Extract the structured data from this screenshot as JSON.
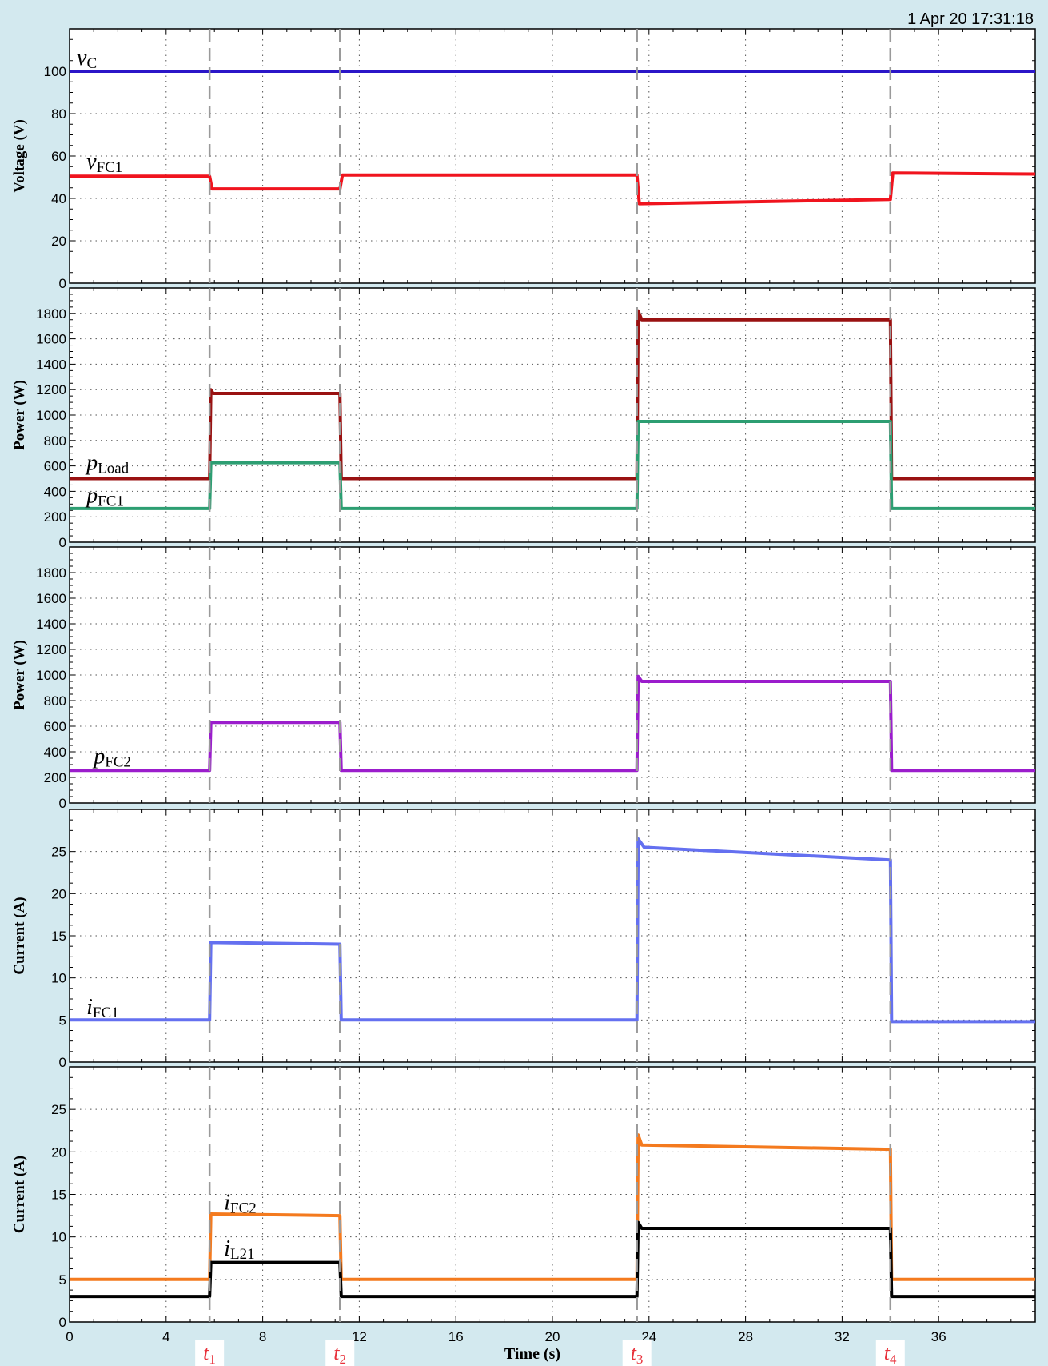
{
  "timestamp": "1 Apr 20  17:31:18",
  "xlabel": "Time (s)",
  "colors": {
    "vC": "#2b16c8",
    "vFC1": "#f0141e",
    "pLoad": "#991111",
    "pFC1": "#2d9e72",
    "pFC2": "#9b1dcc",
    "iFC1": "#6470f0",
    "iFC2": "#f47a1e",
    "iL21": "#000000",
    "marker": "#9a9a9a",
    "marker_box": "#ffffff"
  },
  "markers": [
    {
      "x": 5.8,
      "label": "t",
      "sub": "1"
    },
    {
      "x": 11.2,
      "label": "t",
      "sub": "2"
    },
    {
      "x": 23.5,
      "label": "t",
      "sub": "3"
    },
    {
      "x": 34.0,
      "label": "t",
      "sub": "4"
    }
  ],
  "chart_data": [
    {
      "type": "line",
      "ylabel": "Voltage (V)",
      "xlim": [
        0,
        40
      ],
      "ylim": [
        0,
        120
      ],
      "yticks": [
        0,
        20,
        40,
        60,
        80,
        100
      ],
      "xticks": [
        0,
        4,
        8,
        12,
        16,
        20,
        24,
        28,
        32,
        36
      ],
      "show_xtick_labels": false,
      "grid": true,
      "series": [
        {
          "name": "v",
          "sub": "C",
          "color_key": "vC",
          "x": [
            0,
            5.8,
            5.85,
            11.2,
            11.25,
            23.5,
            23.55,
            34.0,
            34.05,
            40
          ],
          "y": [
            100,
            100,
            100,
            100,
            100,
            100,
            100,
            100,
            100,
            100
          ],
          "label_at": [
            0.3,
            103
          ]
        },
        {
          "name": "v",
          "sub": "FC1",
          "color_key": "vFC1",
          "x": [
            0,
            5.8,
            5.9,
            11.2,
            11.3,
            23.5,
            23.6,
            34.0,
            34.1,
            40
          ],
          "y": [
            50.5,
            50.5,
            44.5,
            44.5,
            51,
            51,
            37.5,
            39.5,
            52,
            51.5
          ],
          "label_at": [
            0.7,
            54
          ]
        }
      ]
    },
    {
      "type": "line",
      "ylabel": "Power (W)",
      "xlim": [
        0,
        40
      ],
      "ylim": [
        0,
        2000
      ],
      "yticks": [
        0,
        200,
        400,
        600,
        800,
        1000,
        1200,
        1400,
        1600,
        1800
      ],
      "xticks": [
        0,
        4,
        8,
        12,
        16,
        20,
        24,
        28,
        32,
        36
      ],
      "show_xtick_labels": false,
      "grid": true,
      "series": [
        {
          "name": "p",
          "sub": "Load",
          "color_key": "pLoad",
          "x": [
            0,
            5.8,
            5.85,
            5.95,
            11.2,
            11.25,
            23.5,
            23.55,
            23.7,
            34.0,
            34.05,
            40
          ],
          "y": [
            500,
            500,
            1200,
            1170,
            1170,
            500,
            500,
            1820,
            1750,
            1750,
            500,
            500
          ],
          "label_at": [
            0.7,
            570
          ]
        },
        {
          "name": "p",
          "sub": "FC1",
          "color_key": "pFC1",
          "x": [
            0,
            5.8,
            5.85,
            11.2,
            11.25,
            23.5,
            23.55,
            34.0,
            34.05,
            40
          ],
          "y": [
            265,
            265,
            625,
            625,
            265,
            265,
            950,
            950,
            265,
            265
          ],
          "label_at": [
            0.7,
            310
          ]
        }
      ]
    },
    {
      "type": "line",
      "ylabel": "Power (W)",
      "xlim": [
        0,
        40
      ],
      "ylim": [
        0,
        2000
      ],
      "yticks": [
        0,
        200,
        400,
        600,
        800,
        1000,
        1200,
        1400,
        1600,
        1800
      ],
      "xticks": [
        0,
        4,
        8,
        12,
        16,
        20,
        24,
        28,
        32,
        36
      ],
      "show_xtick_labels": false,
      "grid": true,
      "series": [
        {
          "name": "p",
          "sub": "FC2",
          "color_key": "pFC2",
          "x": [
            0,
            5.8,
            5.85,
            11.2,
            11.25,
            23.5,
            23.55,
            23.7,
            34.0,
            34.05,
            40
          ],
          "y": [
            255,
            255,
            630,
            630,
            255,
            255,
            990,
            950,
            950,
            255,
            255
          ],
          "label_at": [
            1.0,
            310
          ]
        }
      ]
    },
    {
      "type": "line",
      "ylabel": "Current (A)",
      "xlim": [
        0,
        40
      ],
      "ylim": [
        0,
        30
      ],
      "yticks": [
        0,
        5,
        10,
        15,
        20,
        25
      ],
      "xticks": [
        0,
        4,
        8,
        12,
        16,
        20,
        24,
        28,
        32,
        36
      ],
      "show_xtick_labels": false,
      "grid": true,
      "series": [
        {
          "name": "i",
          "sub": "FC1",
          "color_key": "iFC1",
          "x": [
            0,
            5.8,
            5.85,
            11.2,
            11.25,
            23.5,
            23.55,
            23.8,
            34.0,
            34.05,
            40
          ],
          "y": [
            5,
            5,
            14.2,
            14,
            5,
            5,
            26.5,
            25.5,
            24,
            4.8,
            4.8
          ],
          "label_at": [
            0.7,
            5.7
          ]
        }
      ]
    },
    {
      "type": "line",
      "ylabel": "Current (A)",
      "xlim": [
        0,
        40
      ],
      "ylim": [
        0,
        30
      ],
      "yticks": [
        0,
        5,
        10,
        15,
        20,
        25
      ],
      "xticks": [
        0,
        4,
        8,
        12,
        16,
        20,
        24,
        28,
        32,
        36
      ],
      "xtick_labels": [
        "0",
        "4",
        "8",
        "12",
        "16",
        "20",
        "24",
        "28",
        "32",
        "36"
      ],
      "show_xtick_labels": true,
      "grid": true,
      "series": [
        {
          "name": "i",
          "sub": "FC2",
          "color_key": "iFC2",
          "x": [
            0,
            5.8,
            5.85,
            11.2,
            11.25,
            23.5,
            23.55,
            23.7,
            34.0,
            34.05,
            40
          ],
          "y": [
            5,
            5,
            12.7,
            12.5,
            5,
            5,
            22,
            20.8,
            20.3,
            5,
            5
          ],
          "label_at": [
            6.4,
            13.2
          ]
        },
        {
          "name": "i",
          "sub": "L21",
          "color_key": "iL21",
          "x": [
            0,
            5.8,
            5.85,
            11.2,
            11.25,
            23.5,
            23.55,
            23.7,
            34.0,
            34.05,
            40
          ],
          "y": [
            3,
            3,
            7,
            7,
            3,
            3,
            11.7,
            11,
            11,
            3,
            3
          ],
          "label_at": [
            6.4,
            7.8
          ]
        }
      ]
    }
  ]
}
